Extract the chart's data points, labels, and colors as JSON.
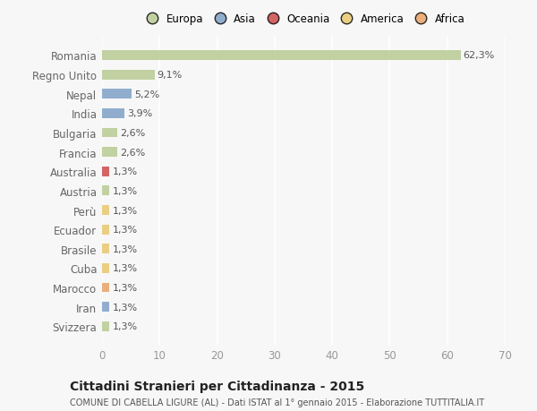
{
  "categories": [
    "Romania",
    "Regno Unito",
    "Nepal",
    "India",
    "Bulgaria",
    "Francia",
    "Australia",
    "Austria",
    "Perù",
    "Ecuador",
    "Brasile",
    "Cuba",
    "Marocco",
    "Iran",
    "Svizzera"
  ],
  "values": [
    62.3,
    9.1,
    5.2,
    3.9,
    2.6,
    2.6,
    1.3,
    1.3,
    1.3,
    1.3,
    1.3,
    1.3,
    1.3,
    1.3,
    1.3
  ],
  "labels": [
    "62,3%",
    "9,1%",
    "5,2%",
    "3,9%",
    "2,6%",
    "2,6%",
    "1,3%",
    "1,3%",
    "1,3%",
    "1,3%",
    "1,3%",
    "1,3%",
    "1,3%",
    "1,3%",
    "1,3%"
  ],
  "bar_colors": [
    "#b5c98e",
    "#b5c98e",
    "#7a9dc5",
    "#7a9dc5",
    "#b5c98e",
    "#b5c98e",
    "#cc4444",
    "#b5c98e",
    "#e8c76a",
    "#e8c76a",
    "#e8c76a",
    "#e8c76a",
    "#e8a060",
    "#7a9dc5",
    "#b5c98e"
  ],
  "legend_entries": [
    {
      "label": "Europa",
      "color": "#b5c98e"
    },
    {
      "label": "Asia",
      "color": "#7a9dc5"
    },
    {
      "label": "Oceania",
      "color": "#cc4444"
    },
    {
      "label": "America",
      "color": "#e8c76a"
    },
    {
      "label": "Africa",
      "color": "#e8a060"
    }
  ],
  "xlim": [
    0,
    70
  ],
  "xticks": [
    0,
    10,
    20,
    30,
    40,
    50,
    60,
    70
  ],
  "title": "Cittadini Stranieri per Cittadinanza - 2015",
  "subtitle": "COMUNE DI CABELLA LIGURE (AL) - Dati ISTAT al 1° gennaio 2015 - Elaborazione TUTTITALIA.IT",
  "background_color": "#f7f7f7",
  "grid_color": "#ffffff",
  "bar_height": 0.5,
  "bar_alpha": 0.82,
  "label_color": "#555555",
  "ytick_color": "#666666",
  "xtick_color": "#999999"
}
